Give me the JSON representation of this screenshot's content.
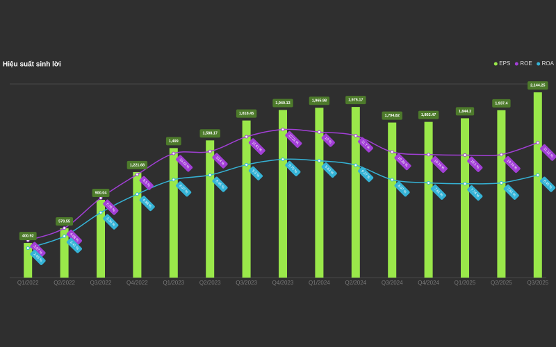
{
  "chart_data": {
    "type": "combo",
    "title": "Hiệu suất sinh lời",
    "legend": "top-right",
    "background": "#2f2f2f",
    "categories": [
      "Q1/2022",
      "Q2/2022",
      "Q3/2022",
      "Q4/2022",
      "Q1/2023",
      "Q2/2023",
      "Q3/2023",
      "Q4/2023",
      "Q1/2024",
      "Q2/2024",
      "Q3/2024",
      "Q4/2024",
      "Q1/2025",
      "Q2/2025",
      "Q3/2025"
    ],
    "series": [
      {
        "name": "EPS",
        "type": "bar",
        "color": "#9ae84a",
        "label_color": "#4d7a2b",
        "values": [
          400.92,
          570.55,
          900.04,
          1221.68,
          1499,
          1588.17,
          1818.45,
          1940.13,
          1965.98,
          1975.17,
          1794.82,
          1802.47,
          1844.2,
          1937.4,
          2144.25
        ],
        "value_labels": [
          "400.92",
          "570.55",
          "900.04",
          "1,221.68",
          "1,499",
          "1,588.17",
          "1,818.45",
          "1,940.13",
          "1,965.98",
          "1,975.17",
          "1,794.82",
          "1,802.47",
          "1,844.2",
          "1,937.4",
          "2,144.25"
        ]
      },
      {
        "name": "ROE",
        "type": "line",
        "axis": "y2",
        "color": "#a23fd6",
        "values": [
          3.07,
          4.08,
          6.56,
          8.5,
          10.23,
          10.4,
          11.61,
          12.21,
          12,
          11.7,
          10.36,
          10.14,
          10.1,
          10.14,
          11.12
        ],
        "value_labels": [
          "3.07 %",
          "4.08 %",
          "6.56 %",
          "8.5 %",
          "10.23 %",
          "10.4 %",
          "11.61 %",
          "12.21 %",
          "12 %",
          "11.7 %",
          "10.36 %",
          "10.14 %",
          "10.1 %",
          "10.14 %",
          "11.12 %"
        ]
      },
      {
        "name": "ROA",
        "type": "line",
        "axis": "y2",
        "color": "#35b3d6",
        "values": [
          2.43,
          3.41,
          5.36,
          6.88,
          8.07,
          8.45,
          9.3,
          9.75,
          9.63,
          9.27,
          8.07,
          7.81,
          7.74,
          7.81,
          8.45
        ],
        "value_labels": [
          "2.43 %",
          "3.41 %",
          "5.36 %",
          "6.88 %",
          "8.07 %",
          "8.45 %",
          "9.3 %",
          "9.75 %",
          "9.63 %",
          "9.27 %",
          "8.07 %",
          "7.81 %",
          "7.74 %",
          "7.81 %",
          "8.45 %"
        ]
      }
    ]
  }
}
